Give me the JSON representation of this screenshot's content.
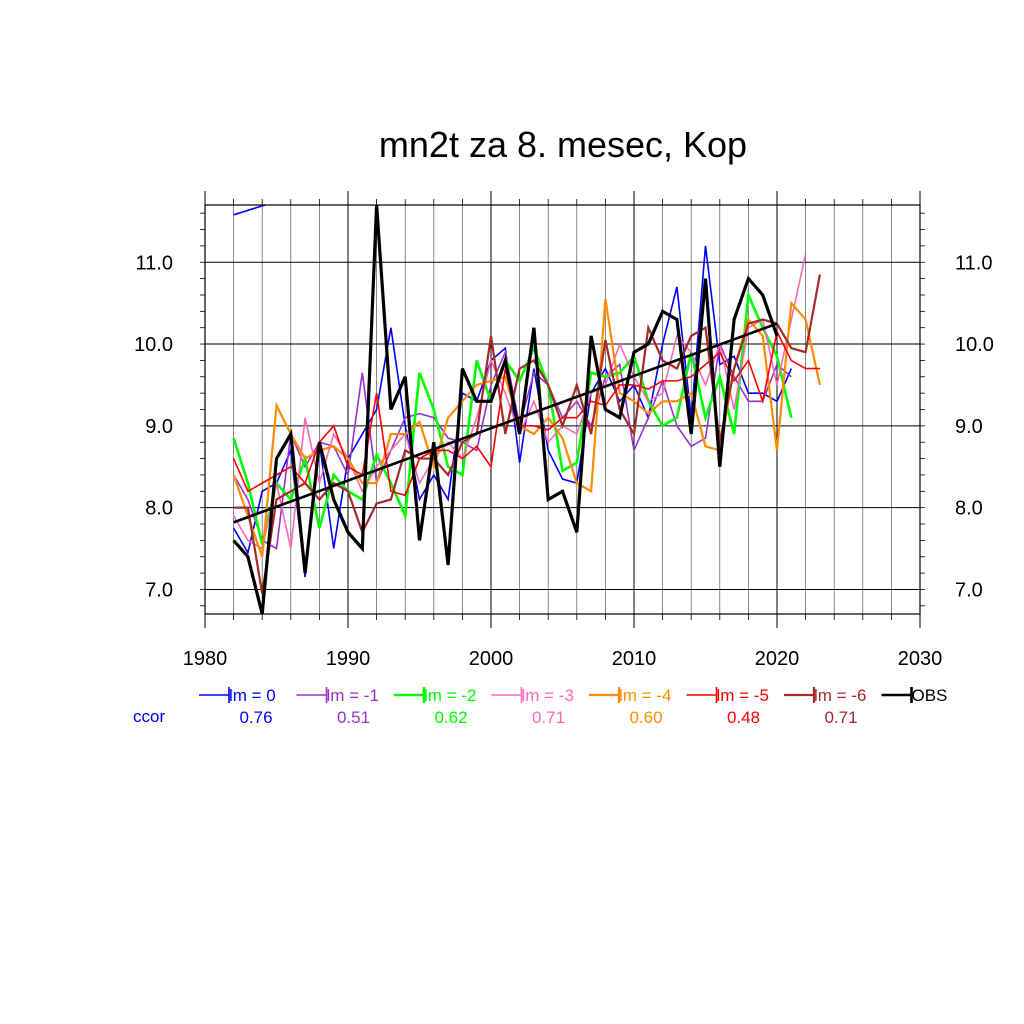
{
  "chart_data": {
    "type": "line",
    "title": "mn2t za 8. mesec, Kop",
    "xlabel": "",
    "ylabel": "",
    "xlim": [
      1980,
      2030
    ],
    "ylim": [
      6.7,
      11.7
    ],
    "x_ticks": [
      1980,
      1990,
      2000,
      2010,
      2020,
      2030
    ],
    "x_tick_labels": [
      "1980",
      "1990",
      "2000",
      "2010",
      "2020",
      "2030"
    ],
    "y_ticks": [
      7.0,
      8.0,
      9.0,
      10.0,
      11.0
    ],
    "y_tick_labels": [
      "7.0",
      "8.0",
      "9.0",
      "10.0",
      "11.0"
    ],
    "grid": true,
    "legend_position": "bottom",
    "ccor_label": "ccor",
    "ccor_label_color": "#0000ff",
    "series": [
      {
        "name": "lm = 0",
        "color": "#0000ff",
        "width": 1.6,
        "ccor": "0.76",
        "x_start": 1982,
        "values": [
          7.75,
          7.45,
          8.2,
          8.3,
          8.7,
          7.15,
          8.8,
          7.5,
          8.6,
          8.9,
          9.2,
          10.2,
          9.0,
          8.1,
          8.4,
          8.1,
          9.4,
          9.3,
          9.8,
          9.95,
          8.55,
          9.7,
          8.7,
          8.35,
          8.3,
          9.4,
          9.7,
          9.3,
          9.5,
          9.1,
          10.0,
          10.7,
          9.1,
          11.2,
          9.75,
          9.85,
          9.4,
          9.4,
          9.3,
          9.7
        ]
      },
      {
        "name": "lm = -1",
        "color": "#9932cc",
        "width": 1.6,
        "ccor": "0.51",
        "x_start": 1982,
        "values": [
          8.4,
          8.1,
          7.6,
          7.5,
          8.9,
          8.5,
          8.8,
          8.75,
          8.4,
          9.65,
          8.3,
          8.7,
          9.1,
          9.15,
          9.1,
          8.85,
          8.8,
          8.7,
          9.5,
          9.9,
          9.0,
          9.65,
          9.5,
          9.1,
          9.3,
          9.0,
          9.6,
          9.75,
          8.7,
          9.1,
          9.55,
          9.0,
          8.75,
          8.85,
          10.0,
          9.6,
          9.3,
          9.3,
          9.75,
          9.6
        ]
      },
      {
        "name": "lm = -2",
        "color": "#00ff00",
        "width": 2.6,
        "ccor": "0.62",
        "x_start": 1982,
        "values": [
          8.85,
          8.3,
          7.55,
          8.3,
          8.1,
          8.6,
          7.75,
          8.4,
          8.2,
          8.1,
          8.65,
          8.3,
          7.9,
          9.65,
          9.2,
          8.5,
          8.4,
          9.8,
          9.3,
          9.8,
          9.55,
          9.95,
          9.5,
          8.45,
          8.55,
          9.65,
          9.6,
          9.65,
          9.85,
          9.3,
          9.0,
          9.1,
          9.9,
          9.1,
          9.6,
          8.9,
          10.6,
          10.2,
          9.85,
          9.1
        ]
      },
      {
        "name": "lm = -3",
        "color": "#ff69b4",
        "width": 1.6,
        "ccor": "0.71",
        "x_start": 1982,
        "values": [
          7.9,
          7.6,
          7.5,
          8.3,
          7.5,
          9.1,
          8.3,
          8.9,
          8.6,
          8.2,
          8.5,
          8.7,
          8.9,
          8.3,
          8.6,
          8.8,
          8.6,
          9.1,
          9.8,
          9.4,
          8.9,
          9.3,
          8.8,
          9.0,
          8.9,
          9.4,
          9.5,
          10.0,
          9.6,
          9.3,
          9.4,
          10.1,
          9.9,
          9.5,
          10.0,
          9.2,
          10.2,
          10.3,
          9.5,
          10.3,
          11.1
        ]
      },
      {
        "name": "lm = -4",
        "color": "#ff8c00",
        "width": 2.2,
        "ccor": "0.60",
        "x_start": 1982,
        "values": [
          8.4,
          7.9,
          7.4,
          9.25,
          8.9,
          8.6,
          8.7,
          8.75,
          8.6,
          8.3,
          8.3,
          8.9,
          8.9,
          9.05,
          8.5,
          9.1,
          9.3,
          9.5,
          9.55,
          9.6,
          9.0,
          8.9,
          9.1,
          8.85,
          8.3,
          8.2,
          10.55,
          9.4,
          9.3,
          9.15,
          9.3,
          9.3,
          9.4,
          8.75,
          8.7,
          9.7,
          10.3,
          10.1,
          8.7,
          10.5,
          10.3,
          9.5
        ]
      },
      {
        "name": "lm = -5",
        "color": "#ff0000",
        "width": 1.6,
        "ccor": "0.48",
        "x_start": 1982,
        "values": [
          8.6,
          8.2,
          8.3,
          8.4,
          8.5,
          8.3,
          8.8,
          9.0,
          8.5,
          8.4,
          9.4,
          8.2,
          8.15,
          8.6,
          8.7,
          8.7,
          8.6,
          8.75,
          8.5,
          9.7,
          9.0,
          9.0,
          8.95,
          9.1,
          9.1,
          9.3,
          9.25,
          9.5,
          9.5,
          9.45,
          9.55,
          9.55,
          9.6,
          9.75,
          9.9,
          9.55,
          9.8,
          9.3,
          10.15,
          9.8,
          9.7,
          9.7
        ]
      },
      {
        "name": "lm = -6",
        "color": "#a52a2a",
        "width": 2.2,
        "ccor": "0.71",
        "x_start": 1982,
        "values": [
          8.0,
          8.0,
          6.95,
          8.1,
          8.2,
          8.3,
          8.1,
          8.3,
          8.2,
          7.7,
          8.05,
          8.1,
          8.7,
          8.6,
          8.6,
          8.4,
          8.8,
          8.9,
          10.1,
          8.9,
          9.7,
          9.8,
          9.5,
          9.0,
          9.5,
          8.9,
          10.05,
          9.2,
          8.9,
          10.2,
          9.8,
          9.7,
          10.1,
          10.2,
          8.8,
          9.7,
          10.25,
          10.3,
          10.25,
          9.95,
          9.9,
          10.85
        ]
      },
      {
        "name": "OBS",
        "color": "#000000",
        "width": 3.2,
        "ccor": "",
        "x_start": 1982,
        "values": [
          7.6,
          7.4,
          6.7,
          8.6,
          8.9,
          7.2,
          8.8,
          8.1,
          7.7,
          7.5,
          11.7,
          9.2,
          9.6,
          7.6,
          8.8,
          7.3,
          9.7,
          9.3,
          9.3,
          9.8,
          8.9,
          10.2,
          8.1,
          8.2,
          7.7,
          10.1,
          9.2,
          9.1,
          9.9,
          10.0,
          10.4,
          10.3,
          8.9,
          10.8,
          8.5,
          10.3,
          10.8,
          10.6,
          10.1
        ]
      }
    ],
    "trend_line": {
      "color": "#000000",
      "x": [
        1982,
        2020
      ],
      "y": [
        7.82,
        10.25
      ]
    },
    "extra_segment": {
      "color": "#0000ff",
      "x": [
        1982,
        1984.2
      ],
      "y": [
        11.58,
        11.7
      ]
    }
  }
}
